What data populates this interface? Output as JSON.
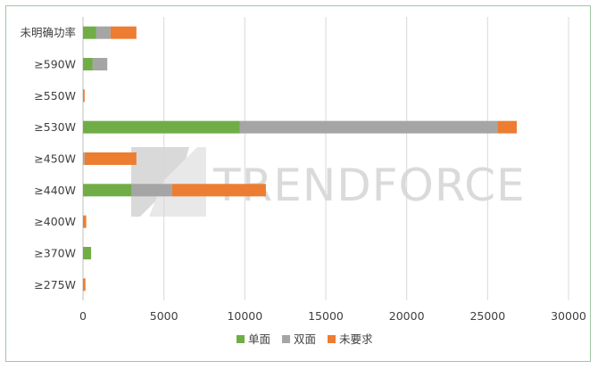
{
  "chart_data": {
    "type": "bar",
    "orientation": "horizontal",
    "stacked": true,
    "categories": [
      "未明确功率",
      "≥590W",
      "≥550W",
      "≥530W",
      "≥450W",
      "≥440W",
      "≥400W",
      "≥370W",
      "≥275W"
    ],
    "series": [
      {
        "name": "单面",
        "color": "#70ad47",
        "values": [
          800,
          600,
          0,
          9700,
          0,
          3000,
          0,
          500,
          0
        ]
      },
      {
        "name": "双面",
        "color": "#a5a5a5",
        "values": [
          900,
          900,
          0,
          15900,
          100,
          2500,
          0,
          0,
          0
        ]
      },
      {
        "name": "未要求",
        "color": "#ed7d31",
        "values": [
          1600,
          0,
          100,
          1200,
          3200,
          5800,
          200,
          0,
          150
        ]
      }
    ],
    "xlim": [
      0,
      30000
    ],
    "xticks": [
      "0",
      "5000",
      "10000",
      "15000",
      "20000",
      "25000",
      "30000"
    ],
    "grid": true,
    "legend_position": "bottom",
    "watermark": "TRENDFORCE"
  }
}
